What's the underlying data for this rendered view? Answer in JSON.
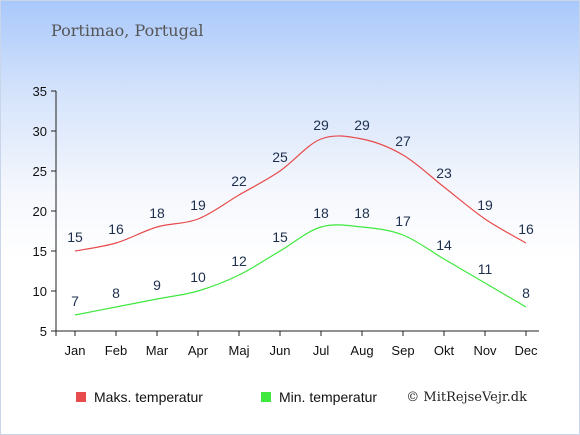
{
  "title": "Portimao, Portugal",
  "credit": "© MitRejseVejr.dk",
  "colors": {
    "max": "#e84b4b",
    "min": "#3ee83e"
  },
  "chart_data": {
    "type": "line",
    "categories": [
      "Jan",
      "Feb",
      "Mar",
      "Apr",
      "Maj",
      "Jun",
      "Jul",
      "Aug",
      "Sep",
      "Okt",
      "Nov",
      "Dec"
    ],
    "ylim": [
      5,
      35
    ],
    "yticks": [
      5,
      10,
      15,
      20,
      25,
      30,
      35
    ],
    "grid": false,
    "legend_position": "bottom",
    "series": [
      {
        "name": "Maks. temperatur",
        "values": [
          15,
          16,
          18,
          19,
          22,
          25,
          29,
          29,
          27,
          23,
          19,
          16
        ]
      },
      {
        "name": "Min. temperatur",
        "values": [
          7,
          8,
          9,
          10,
          12,
          15,
          18,
          18,
          17,
          14,
          11,
          8
        ]
      }
    ]
  }
}
